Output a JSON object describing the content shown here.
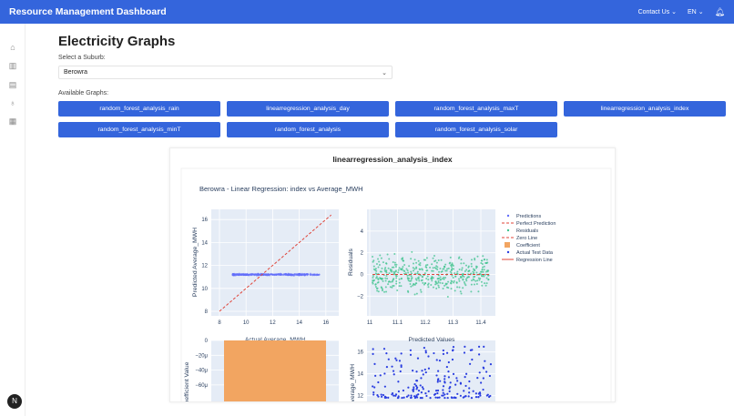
{
  "header": {
    "title": "Resource Management Dashboard",
    "contact": "Contact Us",
    "lang": "EN",
    "bg": "#3465dc"
  },
  "sidebar": {
    "items": [
      {
        "icon": "home-icon"
      },
      {
        "icon": "chart-icon"
      },
      {
        "icon": "document-icon"
      },
      {
        "icon": "lightbulb-icon"
      },
      {
        "icon": "book-icon"
      }
    ]
  },
  "page": {
    "title": "Electricity Graphs",
    "suburb_label": "Select a Suburb:",
    "suburb_value": "Berowra",
    "graphs_label": "Available Graphs:"
  },
  "graphs": [
    "random_forest_analysis_rain",
    "linearregression_analysis_day",
    "random_forest_analysis_maxT",
    "linearregression_analysis_index",
    "random_forest_analysis_minT",
    "random_forest_analysis",
    "random_forest_analysis_solar"
  ],
  "card": {
    "title": "linearregression_analysis_index"
  },
  "chart_data": {
    "title": "Berowra - Linear Regression: index vs Average_MWH",
    "legend": {
      "placement": "right",
      "entries": [
        "Predictions",
        "Perfect Prediction",
        "Residuals",
        "Zero Line",
        "Coefficient",
        "Actual Test Data",
        "Regression Line"
      ]
    },
    "subplots": [
      {
        "type": "scatter",
        "xlabel": "Actual Average_MWH",
        "ylabel": "Predicted Average_MWH",
        "xticks": [
          "8",
          "10",
          "12",
          "14",
          "16"
        ],
        "yticks": [
          "8",
          "10",
          "12",
          "14",
          "16"
        ],
        "xlim": [
          7.5,
          16.9
        ],
        "ylim": [
          7.7,
          16.7
        ],
        "series": [
          {
            "name": "Predictions",
            "color": "#636efa",
            "y_range": [
              11.0,
              11.4
            ],
            "x_range": [
              8,
              16.4
            ]
          },
          {
            "name": "Perfect Prediction",
            "color": "#e0453a",
            "line": [
              [
                8,
                8
              ],
              [
                16.4,
                16.4
              ]
            ]
          }
        ]
      },
      {
        "type": "scatter",
        "xlabel": "Predicted Values",
        "ylabel": "Residuals",
        "xticks": [
          "11",
          "11.1",
          "11.2",
          "11.3",
          "11.4"
        ],
        "yticks": [
          "−2",
          "0",
          "2",
          "4"
        ],
        "xlim": [
          10.99,
          11.45
        ],
        "ylim": [
          -3.8,
          5.8
        ],
        "series": [
          {
            "name": "Residuals",
            "color": "#3fc38e",
            "y_range": [
              -3.2,
              5.3
            ]
          },
          {
            "name": "Zero Line",
            "color": "#e0453a",
            "y": 0
          }
        ]
      },
      {
        "type": "bar",
        "ylabel": "Coefficient Value",
        "yticks": [
          "0",
          "−20μ",
          "−40μ",
          "−60μ"
        ],
        "series": [
          {
            "name": "Coefficient",
            "color": "#f2a561"
          }
        ]
      },
      {
        "type": "scatter",
        "ylabel": "Average_MWH",
        "yticks": [
          "12",
          "14",
          "16"
        ],
        "series": [
          {
            "name": "Actual Test Data",
            "color": "#2a3ee0",
            "y_range": [
              11.8,
              16.5
            ]
          }
        ]
      }
    ]
  }
}
